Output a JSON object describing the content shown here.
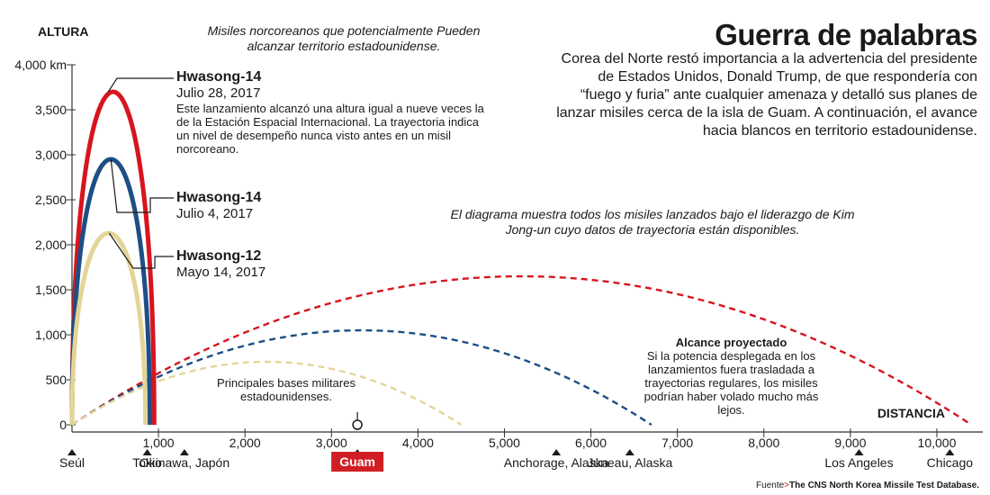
{
  "title": "Guerra de palabras",
  "intro": "Corea del Norte restó importancia a la advertencia del presidente de Estados Unidos, Donald Trump, de que respondería con “fuego y furia” ante cualquier amenaza y detalló sus planes de lanzar misiles cerca de la isla de Guam. A continuación, el avance hacia blancos en territorio estadounidense.",
  "note_top": "Misiles norcoreanos que potencialmente Pueden alcanzar territorio estadounidense.",
  "note_middle": "El diagrama muestra todos los misiles lanzados bajo el liderazgo de Kim Jong-un cuyo datos de trayectoria están disponibles.",
  "bases_label": "Principales bases militares estadounidenses.",
  "projected": {
    "title": "Alcance proyectado",
    "text": "Si la potencia desplegada en los lanzamientos fuera trasladada a trayectorias regulares, los misiles podrían haber volado mucho más lejos."
  },
  "source": {
    "prefix": "Fuente",
    "name": "The CNS North Korea Missile Test Database."
  },
  "missiles": [
    {
      "name": "Hwasong-14",
      "date": "Julio 28, 2017",
      "desc": "Este lanzamiento alcanzó una altura igual a nueve veces la de la Estación Espacial Internacional. La trayectoria indica un nivel de desempeño nunca visto antes en un misil norcoreano."
    },
    {
      "name": "Hwasong-14",
      "date": "Julio 4, 2017",
      "desc": ""
    },
    {
      "name": "Hwasong-12",
      "date": "Mayo 14, 2017",
      "desc": ""
    }
  ],
  "chart_data": {
    "type": "line",
    "ylabel": "ALTURA",
    "xlabel": "DISTANCIA",
    "xlim": [
      0,
      10500
    ],
    "ylim": [
      0,
      4000
    ],
    "y_ticks": [
      0,
      500,
      1000,
      1500,
      2000,
      2500,
      3000,
      3500,
      4000
    ],
    "y_tick_labels": [
      "0",
      "500",
      "1,000",
      "1,500",
      "2,000",
      "2,500",
      "3,000",
      "3,500",
      "4,000 km"
    ],
    "x_ticks": [
      1000,
      2000,
      3000,
      4000,
      5000,
      6000,
      7000,
      8000,
      9000,
      10000
    ],
    "x_tick_labels": [
      "1,000",
      "2,000",
      "3,000",
      "4,000",
      "5,000",
      "6,000",
      "7,000",
      "8,000",
      "9,000",
      "10,000"
    ],
    "series": [
      {
        "name": "Hwasong-14 (Julio 28, 2017)",
        "color": "#d7151f",
        "lofted_peak": 3700,
        "lofted_range": 950,
        "projected_range": 10400,
        "projected_peak": 1650
      },
      {
        "name": "Hwasong-14 (Julio 4, 2017)",
        "color": "#1d4f85",
        "lofted_peak": 2950,
        "lofted_range": 900,
        "projected_range": 6700,
        "projected_peak": 1050
      },
      {
        "name": "Hwasong-12 (Mayo 14, 2017)",
        "color": "#e3d597",
        "lofted_peak": 2130,
        "lofted_range": 850,
        "projected_range": 4500,
        "projected_peak": 700
      }
    ],
    "locations": [
      {
        "name": "Seúl",
        "x": 0,
        "highlight": false
      },
      {
        "name": "Tokio",
        "x": 870,
        "highlight": false
      },
      {
        "name": "Okinawa, Japón",
        "x": 1300,
        "highlight": false
      },
      {
        "name": "Guam",
        "x": 3300,
        "highlight": true,
        "highlight_color": "#cf1f25"
      },
      {
        "name": "Anchorage, Alaska",
        "x": 5600,
        "highlight": false
      },
      {
        "name": "Juneau, Alaska",
        "x": 6450,
        "highlight": false
      },
      {
        "name": "Los Angeles",
        "x": 9100,
        "highlight": false
      },
      {
        "name": "Chicago",
        "x": 10150,
        "highlight": false
      }
    ]
  }
}
